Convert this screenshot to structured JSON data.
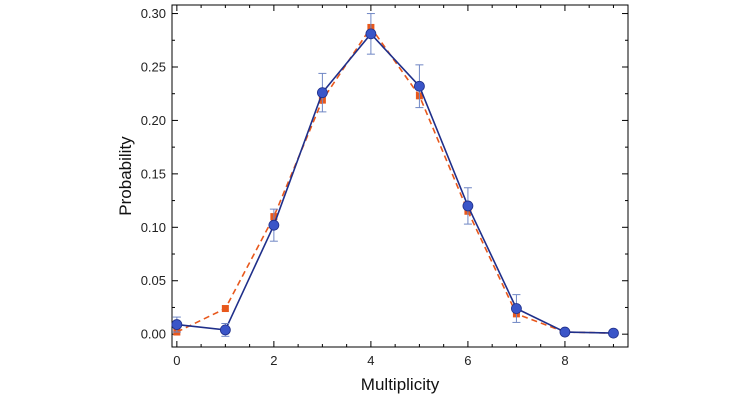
{
  "chart_data": {
    "type": "line",
    "xlabel": "Multiplicity",
    "ylabel": "Probability",
    "xlim": [
      -0.1,
      9.3
    ],
    "ylim": [
      -0.012,
      0.308
    ],
    "xticks": [
      0,
      2,
      4,
      6,
      8
    ],
    "yticks": [
      0.0,
      0.05,
      0.1,
      0.15,
      0.2,
      0.25,
      0.3
    ],
    "ytick_labels": [
      "0.00",
      "0.05",
      "0.10",
      "0.15",
      "0.20",
      "0.25",
      "0.30"
    ],
    "grid": false,
    "legend": "none",
    "series": [
      {
        "marker": "circle",
        "line_style": "solid",
        "color": "#1f2f8a",
        "marker_color": "#3a55c8",
        "x": [
          0,
          1,
          2,
          3,
          4,
          5,
          6,
          7,
          8,
          9
        ],
        "y": [
          0.009,
          0.004,
          0.102,
          0.226,
          0.281,
          0.232,
          0.12,
          0.024,
          0.002,
          0.001
        ],
        "error": [
          0.007,
          0.006,
          0.015,
          0.018,
          0.019,
          0.02,
          0.017,
          0.013,
          0.002,
          0.001
        ]
      },
      {
        "marker": "square",
        "line_style": "dashed",
        "color": "#e8581c",
        "marker_color": "#e8581c",
        "x": [
          0,
          1,
          2,
          3,
          4,
          5,
          6,
          7,
          8,
          9
        ],
        "y": [
          0.002,
          0.024,
          0.11,
          0.219,
          0.287,
          0.223,
          0.115,
          0.019,
          0.002,
          0.001
        ]
      }
    ]
  }
}
